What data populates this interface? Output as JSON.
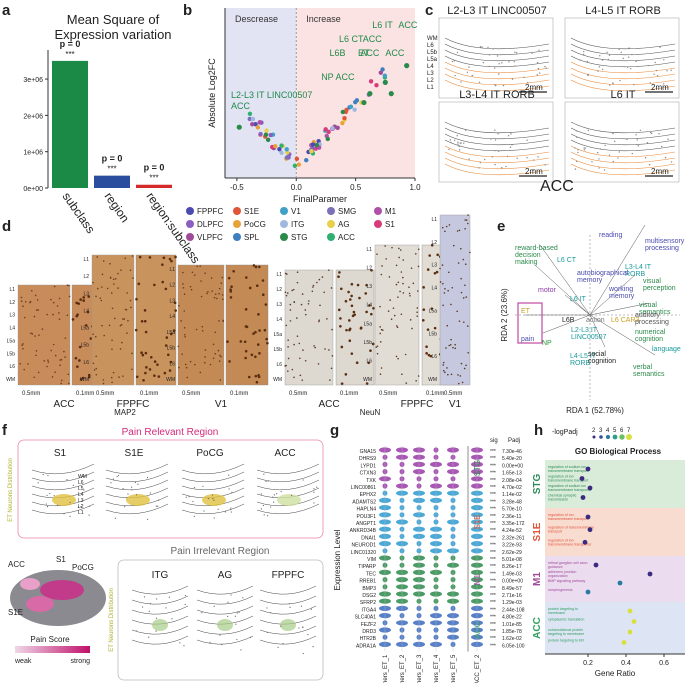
{
  "panels": {
    "a": "a",
    "b": "b",
    "c": "c",
    "d": "d",
    "e": "e",
    "f": "f",
    "g": "g",
    "h": "h"
  },
  "a": {
    "title": "Mean Square of\nExpression variation",
    "yticks": [
      "0e+00",
      "1e+06",
      "2e+06",
      "3e+06"
    ],
    "bars": [
      {
        "label": "subclass",
        "value": 3500000,
        "color": "#1a8a46",
        "p": "p = 0",
        "stars": "***"
      },
      {
        "label": "region",
        "value": 340000,
        "color": "#2b4d9e",
        "p": "p = 0",
        "stars": "***"
      },
      {
        "label": "region:subclass",
        "value": 90000,
        "color": "#d42a2a",
        "p": "p = 0",
        "stars": "***"
      }
    ],
    "ymax": 3800000
  },
  "b": {
    "decrease": "Descrease",
    "increase": "Increase",
    "xlabel": "FinalParamer",
    "ylabel": "Absolute Log2FC",
    "xticks": [
      "-0.5",
      "0.0",
      "0.5",
      "1.0"
    ],
    "labels": [
      "L6 IT",
      "ACC",
      "L6 CT",
      "ACC",
      "L6B",
      "ACC",
      "ET",
      "ACC",
      "NP",
      "ACC",
      "L2-L3 IT LINC00507",
      "ACC"
    ],
    "legend": [
      {
        "name": "FPPFC",
        "color": "#4a4ab0"
      },
      {
        "name": "S1E",
        "color": "#e0553a"
      },
      {
        "name": "V1",
        "color": "#3fa0c8"
      },
      {
        "name": "SMG",
        "color": "#7a6fb8"
      },
      {
        "name": "M1",
        "color": "#b04fa8"
      },
      {
        "name": "DLPFC",
        "color": "#8a5fc0"
      },
      {
        "name": "PoCG",
        "color": "#e8a23a"
      },
      {
        "name": "ITG",
        "color": "#a0b8e0"
      },
      {
        "name": "AG",
        "color": "#e8d04a"
      },
      {
        "name": "S1",
        "color": "#d83a7a"
      },
      {
        "name": "VLPFC",
        "color": "#a04a9a"
      },
      {
        "name": "SPL",
        "color": "#3f7fc0"
      },
      {
        "name": "STG",
        "color": "#2a8a4a"
      },
      {
        "name": "ACC",
        "color": "#2fb070"
      }
    ]
  },
  "c": {
    "titles": [
      "L2-L3 IT LINC00507",
      "L4-L5 IT RORB",
      "L3-L4 IT RORB",
      "L6 IT"
    ],
    "layers": [
      "WM",
      "L6",
      "L5b",
      "L5a",
      "L4",
      "L3",
      "L2",
      "L1"
    ],
    "scale": "2mm",
    "region": "ACC"
  },
  "d": {
    "layers": [
      "L1",
      "L2",
      "L3",
      "L4",
      "L5a",
      "L5b",
      "L6",
      "WM"
    ],
    "groups": [
      {
        "label": "ACC",
        "sub": [
          "0.5mm",
          "0.1mm"
        ]
      },
      {
        "label": "FPPFC",
        "sub": [
          "0.5mm",
          "0.1mm"
        ]
      },
      {
        "label": "V1",
        "sub": [
          "0.5mm",
          "0.1mm"
        ]
      },
      {
        "label": "ACC",
        "sub": [
          "0.5mm",
          "0.1mm"
        ]
      },
      {
        "label": "FPPFC",
        "sub": [
          "0.5mm",
          "0.1mm"
        ]
      },
      {
        "label": "V1",
        "sub": [
          "0.5mm",
          "0.1mm"
        ]
      }
    ],
    "stain1": "MAP2",
    "stain2": "NeuN"
  },
  "e": {
    "ylabel": "RDA 2 (23.6%)",
    "xlabel": "RDA 1 (52.78%)",
    "terms": [
      "reading",
      "multisensory\nprocessing",
      "reward-based\ndecision\nmaking",
      "L6 CT",
      "L3-L4 IT\nRORB",
      "autobiographical\nmemory",
      "visual\nperception",
      "motor",
      "working\nmemory",
      "L6 IT",
      "visual\nsemantics",
      "ET",
      "L6B",
      "action",
      "L6 CAR3",
      "auditory\nprocessing",
      "pain",
      "NP",
      "L2-L3 IT\nLINC00507",
      "numerical\ncognition",
      "language",
      "L4-L5 IT\nRORB",
      "social\ncognition",
      "verbal\nsemantics"
    ]
  },
  "f": {
    "relevant": "Pain Relevant Region",
    "irrelevant": "Pain Irrelevant Region",
    "side": "ET Neurons Distribution",
    "top": [
      "S1",
      "S1E",
      "PoCG",
      "ACC"
    ],
    "bottom": [
      "ITG",
      "AG",
      "FPPFC"
    ],
    "brain_labels": [
      "ACC",
      "S1",
      "PoCG",
      "S1E"
    ],
    "score": "Pain Score",
    "weak": "weak",
    "strong": "strong",
    "layers": [
      "WM",
      "L6",
      "L5",
      "L4",
      "L3",
      "L2",
      "L1"
    ]
  },
  "g": {
    "ylabel": "Expression Level",
    "sig": "sig",
    "padj": "Padj",
    "genes": [
      "GNA15",
      "DHRS9",
      "LYPD1",
      "CTXN3",
      "TXK",
      "LINC00861",
      "EPHX2",
      "ADAMTS2",
      "HAPLN4",
      "POU3F1",
      "ANGPT1",
      "ANKRD34B",
      "DNAI1",
      "NEUROD1",
      "LINC01320",
      "VIM",
      "TIPARP",
      "TEC",
      "RREB1",
      "BMP3",
      "DSG2",
      "SFRP2",
      "ITGA4",
      "SLC40A1",
      "FEZF2",
      "DRD3",
      "HTR2B",
      "ADRA1A"
    ],
    "padjs": [
      "7.30e-46",
      "5.40e-20",
      "0.00e+00",
      "1.65e-13",
      "2.08e-04",
      "4.70e-02",
      "1.14e-02",
      "3.28e-48",
      "5.70e-10",
      "2.36e-11",
      "3.35e-172",
      "4.24e-52",
      "2.32e-261",
      "3.22e-93",
      "2.62e-29",
      "5.01e-08",
      "8.26e-17",
      "1.49e-03",
      "0.00e+00",
      "8.49e-57",
      "2.71e-16",
      "1.29e-03",
      "2.44e-108",
      "4.80e-22",
      "1.01e-85",
      "1.85e-78",
      "1.62e-02",
      "6.05e-100"
    ],
    "xcats": [
      "others_ET_1",
      "others_ET_2",
      "others_ET_3",
      "others_ET_4",
      "others_ET_5",
      "ACC_ET_2"
    ],
    "groups": [
      "STG",
      "S1E",
      "M1",
      "ACC"
    ]
  },
  "h": {
    "title": "GO Biological Process",
    "legend_title": "-logPadj",
    "legend_ticks": [
      "2",
      "3",
      "4",
      "5",
      "6",
      "7"
    ],
    "xlabel": "Gene Ratio",
    "xticks": [
      "0.2",
      "0.4",
      "0.6"
    ],
    "groups": [
      {
        "name": "STG",
        "color": "#2e8b57",
        "bg": "#d9ecd9"
      },
      {
        "name": "S1E",
        "color": "#e0553a",
        "bg": "#f9dcd0"
      },
      {
        "name": "M1",
        "color": "#a04a9a",
        "bg": "#ecdcef"
      },
      {
        "name": "ACC",
        "color": "#2fa060",
        "bg": "#dde4f3"
      }
    ],
    "terms": [
      "regulation of sodium ion\ntransmembrane transport",
      "regulation of ion\ntransmembrane transport",
      "regulation of sodium ion\ntransmembrane transporter",
      "chemical synaptic\ntransmission",
      "regulation of ion\ntransmembrane transport",
      "regulation of transmembrane\ntransport",
      "regulation of ion\ntransmembrane transporter",
      "retinal ganglion cell axon\nguidance",
      "adherens junction\norganization",
      "BMP signaling pathway",
      "morphogenesis",
      "protein targeting to\nmembrane",
      "cytoplasmic translation",
      "cotranslational protein\ntargeting to membrane",
      "protein targeting to ER"
    ]
  }
}
